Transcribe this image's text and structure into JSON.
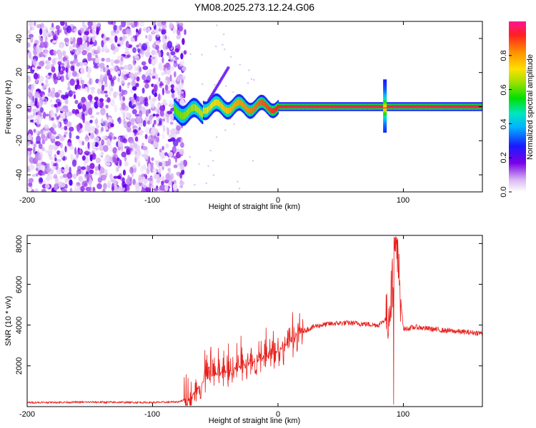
{
  "title": "YM08.2025.273.12.24.G06",
  "chart_data": [
    {
      "type": "heatmap",
      "xlabel": "Height of straight line (km)",
      "ylabel": "Frequency (Hz)",
      "xlim": [
        -200,
        163
      ],
      "ylim": [
        -50,
        50
      ],
      "x_ticks": [
        -200,
        -100,
        0,
        100
      ],
      "x_tick_labels": [
        "-200",
        "-100",
        "0",
        "100"
      ],
      "y_ticks": [
        -40,
        -20,
        0,
        20,
        40
      ],
      "y_tick_labels": [
        "-40",
        "-20",
        "0",
        "20",
        "40"
      ],
      "colorbar": {
        "label": "Normalized spectral amplitude",
        "range": [
          0,
          1
        ],
        "ticks": [
          0,
          0.2,
          0.4,
          0.6,
          0.8
        ],
        "tick_labels": [
          "0.0",
          "0.2",
          "0.4",
          "0.6",
          "0.8"
        ]
      },
      "features": {
        "noise_region_x": [
          -200,
          -78
        ],
        "signal_onset_x": -83,
        "signal_center_freq": 0,
        "spike_x": 85
      }
    },
    {
      "type": "line",
      "xlabel": "Height of straight line (km)",
      "ylabel": "SNR (10 * v/v)",
      "xlim": [
        -200,
        163
      ],
      "ylim": [
        0,
        8400
      ],
      "x_ticks": [
        -200,
        -100,
        0,
        100
      ],
      "x_tick_labels": [
        "-200",
        "-100",
        "0",
        "100"
      ],
      "y_ticks": [
        2000,
        4000,
        6000,
        8000
      ],
      "y_tick_labels": [
        "2000",
        "4000",
        "6000",
        "8000"
      ],
      "color": "#e8201c",
      "series": [
        {
          "name": "SNR",
          "x": [
            -200,
            -150,
            -100,
            -80,
            -70,
            -60,
            -50,
            -40,
            -30,
            -20,
            -10,
            0,
            10,
            20,
            30,
            40,
            50,
            60,
            70,
            80,
            88,
            92,
            94,
            100,
            110,
            130,
            150,
            163
          ],
          "y": [
            200,
            220,
            200,
            230,
            400,
            1200,
            1600,
            1700,
            2000,
            2200,
            2400,
            2700,
            3200,
            3700,
            3950,
            4050,
            4100,
            4100,
            4050,
            4000,
            4400,
            6400,
            8200,
            3800,
            3900,
            3750,
            3650,
            3600
          ]
        }
      ]
    }
  ]
}
